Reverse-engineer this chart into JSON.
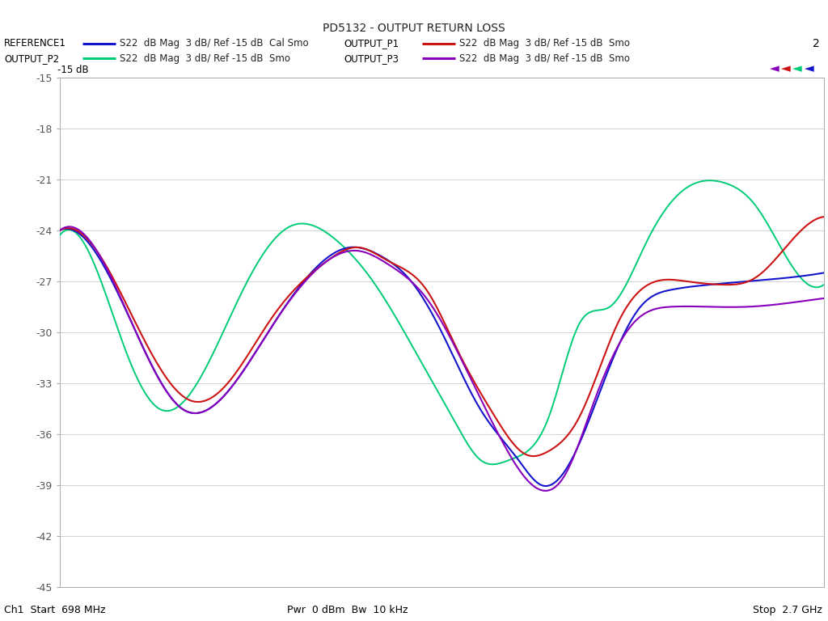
{
  "title": "PD5132 - OUTPUT RETURN LOSS",
  "ymin": -45,
  "ymax": -15,
  "xmin": 0.698,
  "xmax": 2.7,
  "yticks": [
    -15,
    -18,
    -21,
    -24,
    -27,
    -30,
    -33,
    -36,
    -39,
    -42,
    -45
  ],
  "legend": [
    {
      "label": "REFERENCE1",
      "sub": "S22  dB Mag  3 dB/ Ref -15 dB  Cal Smo",
      "color": "#1414cc"
    },
    {
      "label": "OUTPUT_P1",
      "sub": "S22  dB Mag  3 dB/ Ref -15 dB  Smo",
      "color": "#cc1414"
    },
    {
      "label": "OUTPUT_P2",
      "sub": "S22  dB Mag  3 dB/ Ref -15 dB  Smo",
      "color": "#00cc77"
    },
    {
      "label": "OUTPUT_P3",
      "sub": "S22  dB Mag  3 dB/ Ref -15 dB  Smo",
      "color": "#8800bb"
    }
  ],
  "marker_colors": [
    "#1414cc",
    "#cc1414",
    "#00cc77",
    "#8800bb"
  ],
  "ref_label": "-15 dB",
  "number_label": "2",
  "bg_color": "#ffffff",
  "plot_bg": "#ffffff",
  "grid_color": "#cccccc"
}
